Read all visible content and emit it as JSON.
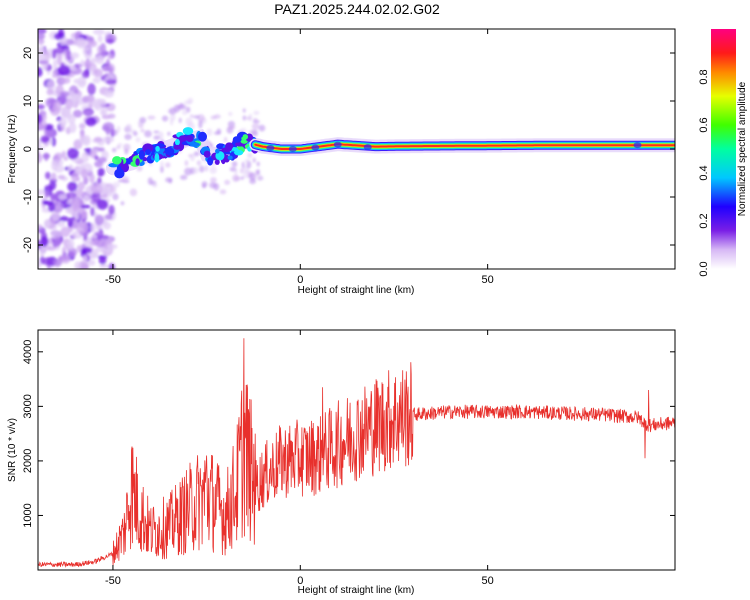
{
  "title": "PAZ1.2025.244.02.02.G02",
  "chart_data": [
    {
      "type": "heatmap",
      "name": "spectrogram",
      "xlabel": "Height of straight line (km)",
      "ylabel": "Frequency (Hz)",
      "xlim": [
        -70,
        100
      ],
      "ylim": [
        -25,
        25
      ],
      "xticks": [
        -50,
        0,
        50
      ],
      "yticks": [
        -20,
        -10,
        0,
        10,
        20
      ],
      "colorbar": {
        "label": "Normalized spectral amplitude",
        "ticks": [
          "0.0",
          "0.2",
          "0.4",
          "0.6",
          "0.8"
        ],
        "range": [
          0,
          1
        ]
      },
      "ridge": [
        {
          "x": -50,
          "y": -4
        },
        {
          "x": -45,
          "y": -3
        },
        {
          "x": -40,
          "y": -1
        },
        {
          "x": -35,
          "y": 0.5
        },
        {
          "x": -30,
          "y": 2
        },
        {
          "x": -27,
          "y": 2.5
        },
        {
          "x": -25,
          "y": -1
        },
        {
          "x": -20,
          "y": -1
        },
        {
          "x": -15,
          "y": 1.5
        },
        {
          "x": -10,
          "y": 0.5
        },
        {
          "x": -5,
          "y": 0
        },
        {
          "x": 0,
          "y": 0
        },
        {
          "x": 5,
          "y": 0.5
        },
        {
          "x": 10,
          "y": 1
        },
        {
          "x": 20,
          "y": 0.5
        },
        {
          "x": 30,
          "y": 0.6
        },
        {
          "x": 50,
          "y": 0.7
        },
        {
          "x": 70,
          "y": 0.8
        },
        {
          "x": 90,
          "y": 0.8
        },
        {
          "x": 100,
          "y": 0.8
        }
      ]
    },
    {
      "type": "line",
      "name": "snr",
      "xlabel": "Height of straight line (km)",
      "ylabel": "SNR (10 * v/v)",
      "xlim": [
        -70,
        100
      ],
      "ylim": [
        0,
        4400
      ],
      "xticks": [
        -50,
        0,
        50
      ],
      "yticks": [
        1000,
        2000,
        3000,
        4000
      ],
      "color": "#e8302c",
      "envelope": [
        {
          "x": -70,
          "y": 100
        },
        {
          "x": -60,
          "y": 100
        },
        {
          "x": -55,
          "y": 150
        },
        {
          "x": -50,
          "y": 300
        },
        {
          "x": -47,
          "y": 700
        },
        {
          "x": -45,
          "y": 1500
        },
        {
          "x": -43,
          "y": 1100
        },
        {
          "x": -40,
          "y": 700
        },
        {
          "x": -35,
          "y": 800
        },
        {
          "x": -30,
          "y": 1100
        },
        {
          "x": -25,
          "y": 1400
        },
        {
          "x": -20,
          "y": 1000
        },
        {
          "x": -17,
          "y": 1500
        },
        {
          "x": -15,
          "y": 2300
        },
        {
          "x": -12,
          "y": 1500
        },
        {
          "x": -10,
          "y": 1700
        },
        {
          "x": -5,
          "y": 2000
        },
        {
          "x": 0,
          "y": 2050
        },
        {
          "x": 5,
          "y": 2100
        },
        {
          "x": 10,
          "y": 2300
        },
        {
          "x": 15,
          "y": 2500
        },
        {
          "x": 20,
          "y": 2650
        },
        {
          "x": 25,
          "y": 2800
        },
        {
          "x": 30,
          "y": 2850
        },
        {
          "x": 40,
          "y": 2900
        },
        {
          "x": 60,
          "y": 2900
        },
        {
          "x": 80,
          "y": 2850
        },
        {
          "x": 90,
          "y": 2800
        },
        {
          "x": 93,
          "y": 2650
        },
        {
          "x": 100,
          "y": 2700
        }
      ],
      "spikes": [
        {
          "x": -45,
          "y": 2200
        },
        {
          "x": -25,
          "y": 2100
        },
        {
          "x": -15,
          "y": 4250
        },
        {
          "x": -12,
          "y": 2500
        },
        {
          "x": 6,
          "y": 3350
        },
        {
          "x": 93,
          "y": 3300
        },
        {
          "x": 92,
          "y": 2050
        }
      ]
    }
  ]
}
